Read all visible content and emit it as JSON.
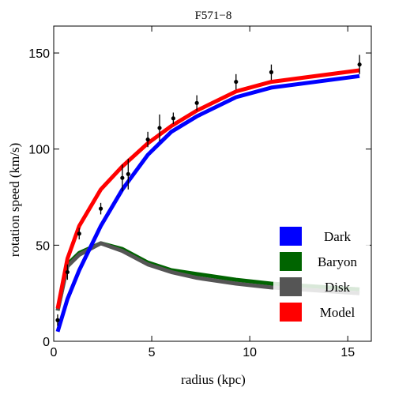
{
  "chart_data": {
    "type": "line",
    "title": "F571−8",
    "xlabel": "radius (kpc)",
    "ylabel": "rotation speed (km/s)",
    "xlim": [
      0,
      16.2
    ],
    "ylim": [
      0,
      164
    ],
    "x_ticks": [
      0,
      5,
      10,
      15
    ],
    "y_ticks": [
      0,
      50,
      100,
      150
    ],
    "grid": false,
    "legend_position": "bottom-right",
    "series": [
      {
        "name": "Dark",
        "color": "#0000ff",
        "x": [
          0.2,
          0.7,
          1.3,
          2.4,
          3.5,
          4.8,
          6.0,
          7.3,
          9.3,
          11.1,
          15.6
        ],
        "y": [
          5,
          22,
          37,
          60,
          79,
          97,
          109,
          117,
          127,
          132,
          138
        ]
      },
      {
        "name": "Baryon",
        "color": "#006400",
        "x": [
          0.2,
          0.7,
          1.3,
          2.4,
          3.5,
          4.8,
          6.0,
          7.3,
          9.3,
          11.1,
          15.6
        ],
        "y": [
          16,
          40,
          46,
          51,
          48,
          41,
          37,
          35,
          32,
          30,
          27
        ]
      },
      {
        "name": "Disk",
        "color": "#555555",
        "x": [
          0.2,
          0.7,
          1.3,
          2.4,
          3.5,
          4.8,
          6.0,
          7.3,
          9.3,
          11.1,
          15.6
        ],
        "y": [
          16,
          39,
          45,
          51,
          47,
          40,
          36,
          33,
          30,
          28,
          25
        ]
      },
      {
        "name": "Model",
        "color": "#ff0000",
        "x": [
          0.2,
          0.7,
          1.3,
          2.4,
          3.5,
          4.8,
          6.0,
          7.3,
          9.3,
          11.1,
          15.6
        ],
        "y": [
          17,
          43,
          60,
          79,
          91,
          103,
          112,
          120,
          130,
          135,
          141
        ]
      }
    ],
    "observed": {
      "x": [
        0.2,
        0.7,
        1.3,
        2.4,
        3.5,
        3.8,
        4.8,
        5.4,
        6.1,
        7.3,
        9.3,
        11.1,
        15.6
      ],
      "y": [
        11,
        36,
        56,
        69,
        85,
        87,
        105,
        111,
        116,
        124,
        135,
        140,
        144
      ],
      "err": [
        3,
        4,
        3,
        3,
        7,
        8,
        4,
        7,
        3,
        4,
        4,
        4,
        5
      ]
    }
  }
}
